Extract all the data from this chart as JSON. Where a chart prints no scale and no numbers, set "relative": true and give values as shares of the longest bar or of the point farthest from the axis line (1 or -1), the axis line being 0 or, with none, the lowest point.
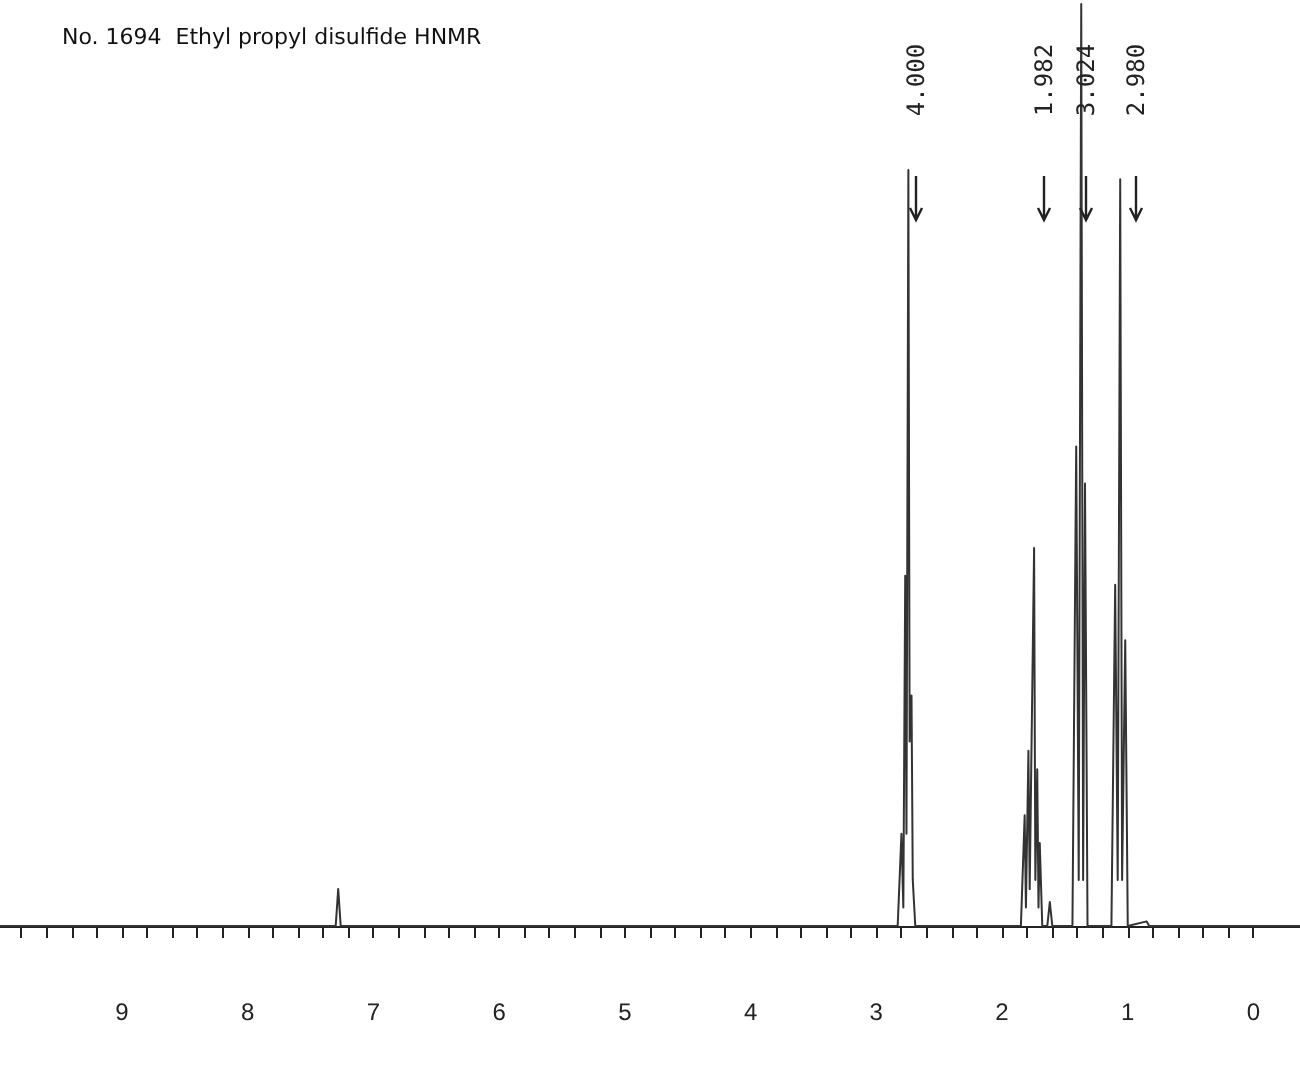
{
  "chart_data": {
    "type": "line",
    "title": "No. 1694  Ethyl propyl disulfide HNMR",
    "relative": true,
    "color": "#333333",
    "marker": "none",
    "line_style": "solid",
    "grid": false,
    "x": [
      9.97,
      7.3,
      7.28,
      7.26,
      2.83,
      2.8,
      2.785,
      2.77,
      2.76,
      2.745,
      2.735,
      2.72,
      2.71,
      2.69,
      1.85,
      1.82,
      1.81,
      1.79,
      1.78,
      1.745,
      1.735,
      1.72,
      1.71,
      1.7,
      1.68,
      1.64,
      1.62,
      1.6,
      1.44,
      1.41,
      1.39,
      1.37,
      1.355,
      1.34,
      1.32,
      1.13,
      1.1,
      1.08,
      1.06,
      1.045,
      1.02,
      1.0,
      0.85,
      0.83,
      -0.37
    ],
    "values": [
      0,
      0,
      0.04,
      0,
      0,
      0.1,
      0.02,
      0.38,
      0.1,
      0.82,
      0.2,
      0.25,
      0.05,
      0,
      0,
      0.12,
      0.02,
      0.19,
      0.04,
      0.41,
      0.05,
      0.17,
      0.02,
      0.09,
      0,
      0,
      0.026,
      0,
      0,
      0.52,
      0.05,
      1.0,
      0.05,
      0.48,
      0,
      0,
      0.37,
      0.05,
      0.81,
      0.05,
      0.31,
      0,
      0.005,
      0,
      0
    ],
    "xlim": [
      9.97,
      -0.37
    ],
    "xticks": [
      0,
      1,
      2,
      3,
      4,
      5,
      6,
      7,
      8,
      9,
      {
        "value": 0.2,
        "label": null
      },
      {
        "value": 0.4,
        "label": null
      },
      {
        "value": 0.6,
        "label": null
      },
      {
        "value": 0.8,
        "label": null
      },
      {
        "value": 1.2,
        "label": null
      },
      {
        "value": 1.4,
        "label": null
      },
      {
        "value": 1.6,
        "label": null
      },
      {
        "value": 1.8,
        "label": null
      },
      {
        "value": 2.2,
        "label": null
      },
      {
        "value": 2.4,
        "label": null
      },
      {
        "value": 2.6,
        "label": null
      },
      {
        "value": 2.8,
        "label": null
      },
      {
        "value": 3.2,
        "label": null
      },
      {
        "value": 3.4,
        "label": null
      },
      {
        "value": 3.6,
        "label": null
      },
      {
        "value": 3.8,
        "label": null
      },
      {
        "value": 4.2,
        "label": null
      },
      {
        "value": 4.4,
        "label": null
      },
      {
        "value": 4.6,
        "label": null
      },
      {
        "value": 4.8,
        "label": null
      },
      {
        "value": 5.2,
        "label": null
      },
      {
        "value": 5.4,
        "label": null
      },
      {
        "value": 5.6,
        "label": null
      },
      {
        "value": 5.8,
        "label": null
      },
      {
        "value": 6.2,
        "label": null
      },
      {
        "value": 6.4,
        "label": null
      },
      {
        "value": 6.6,
        "label": null
      },
      {
        "value": 6.8,
        "label": null
      },
      {
        "value": 7.2,
        "label": null
      },
      {
        "value": 7.4,
        "label": null
      },
      {
        "value": 7.6,
        "label": null
      },
      {
        "value": 7.8,
        "label": null
      },
      {
        "value": 8.2,
        "label": null
      },
      {
        "value": 8.4,
        "label": null
      },
      {
        "value": 8.6,
        "label": null
      },
      {
        "value": 8.8,
        "label": null
      },
      {
        "value": 9.2,
        "label": null
      },
      {
        "value": 9.4,
        "label": null
      },
      {
        "value": 9.6,
        "label": null
      },
      {
        "value": 9.8,
        "label": null
      }
    ],
    "tick_labels": "x",
    "annotations": [
      "4.000",
      "1.982",
      "3.024",
      "2.980"
    ]
  }
}
